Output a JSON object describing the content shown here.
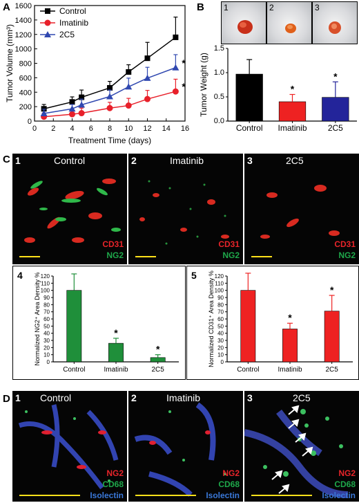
{
  "panels": {
    "A": "A",
    "B": "B",
    "C": "C",
    "D": "D"
  },
  "colors": {
    "control": "#000000",
    "imatinib": "#e8202a",
    "c2c5": "#3048b0",
    "ng2": "#1ea84a",
    "cd31": "#e8242a",
    "bar_green": "#1f8f3a",
    "bar_red": "#ee2222",
    "bar_black": "#000000",
    "bar_blue": "#23249a",
    "scale_bar": "#ffe11a"
  },
  "icons": {
    "control_marker": "square-marker",
    "imatinib_marker": "circle-marker",
    "c2c5_marker": "triangle-marker",
    "arrow": "arrow-icon"
  },
  "panel_b_photos": [
    "1",
    "2",
    "3"
  ],
  "panel_c_images": [
    {
      "num": "1",
      "title": "Control",
      "labels": [
        "CD31",
        "NG2"
      ]
    },
    {
      "num": "2",
      "title": "Imatinib",
      "labels": [
        "CD31",
        "NG2"
      ]
    },
    {
      "num": "3",
      "title": "2C5",
      "labels": [
        "CD31",
        "NG2"
      ]
    }
  ],
  "panel_d_images": [
    {
      "num": "1",
      "title": "Control",
      "labels": [
        "NG2",
        "CD68",
        "Isolectin"
      ]
    },
    {
      "num": "2",
      "title": "Imatinib",
      "labels": [
        "NG2",
        "CD68",
        "Isolectin"
      ]
    },
    {
      "num": "3",
      "title": "2C5",
      "labels": [
        "NG2",
        "CD68",
        "Isolectin"
      ]
    }
  ],
  "chart_data": [
    {
      "id": "A",
      "type": "line",
      "xlabel": "Treatment Time (days)",
      "ylabel": "Tumor Volume (mm³)",
      "xlim": [
        0,
        16
      ],
      "ylim": [
        0,
        1600
      ],
      "xticks": [
        0,
        2,
        4,
        6,
        8,
        10,
        12,
        14,
        16
      ],
      "yticks": [
        0,
        200,
        400,
        600,
        800,
        1000,
        1200,
        1400,
        1600
      ],
      "x": [
        1,
        4,
        5,
        8,
        10,
        12,
        15
      ],
      "legend_position": "top-left",
      "series": [
        {
          "name": "Control",
          "values": [
            170,
            265,
            330,
            460,
            680,
            870,
            1160
          ],
          "errors": [
            60,
            70,
            100,
            90,
            100,
            220,
            280
          ]
        },
        {
          "name": "Imatinib",
          "values": [
            60,
            95,
            110,
            180,
            215,
            305,
            410
          ],
          "errors": [
            50,
            50,
            70,
            80,
            100,
            120,
            170
          ]
        },
        {
          "name": "2C5",
          "values": [
            105,
            170,
            225,
            340,
            475,
            595,
            740
          ],
          "errors": [
            60,
            60,
            80,
            90,
            120,
            150,
            180
          ]
        }
      ],
      "annotations": [
        "*",
        "*"
      ]
    },
    {
      "id": "B",
      "type": "bar",
      "ylabel": "Tumor Weight (g)",
      "ylim": [
        0,
        1.5
      ],
      "yticks": [
        0.0,
        0.5,
        1.0,
        1.5
      ],
      "categories": [
        "Control",
        "Imatinib",
        "2C5"
      ],
      "values": [
        0.97,
        0.4,
        0.49
      ],
      "errors": [
        0.3,
        0.15,
        0.32
      ],
      "annotations": [
        "",
        "*",
        "*"
      ]
    },
    {
      "id": "C4",
      "type": "bar",
      "ylabel": "Normalized NG2⁺ Area Density %",
      "ylim": [
        0,
        120
      ],
      "yticks": [
        0,
        10,
        20,
        30,
        40,
        50,
        60,
        70,
        80,
        90,
        100,
        110,
        120
      ],
      "categories": [
        "Control",
        "Imatinib",
        "2C5"
      ],
      "values": [
        100,
        26,
        6
      ],
      "errors": [
        23,
        7,
        4
      ],
      "annotations": [
        "",
        "*",
        "*"
      ],
      "panel_number": "4"
    },
    {
      "id": "C5",
      "type": "bar",
      "ylabel": "Normalized CD31⁺ Area Density %",
      "ylim": [
        0,
        120
      ],
      "yticks": [
        0,
        10,
        20,
        30,
        40,
        50,
        60,
        70,
        80,
        90,
        100,
        110,
        120
      ],
      "categories": [
        "Control",
        "Imatinib",
        "2C5"
      ],
      "values": [
        100,
        46,
        71
      ],
      "errors": [
        24,
        8,
        22
      ],
      "annotations": [
        "",
        "*",
        "*"
      ],
      "panel_number": "5"
    }
  ]
}
